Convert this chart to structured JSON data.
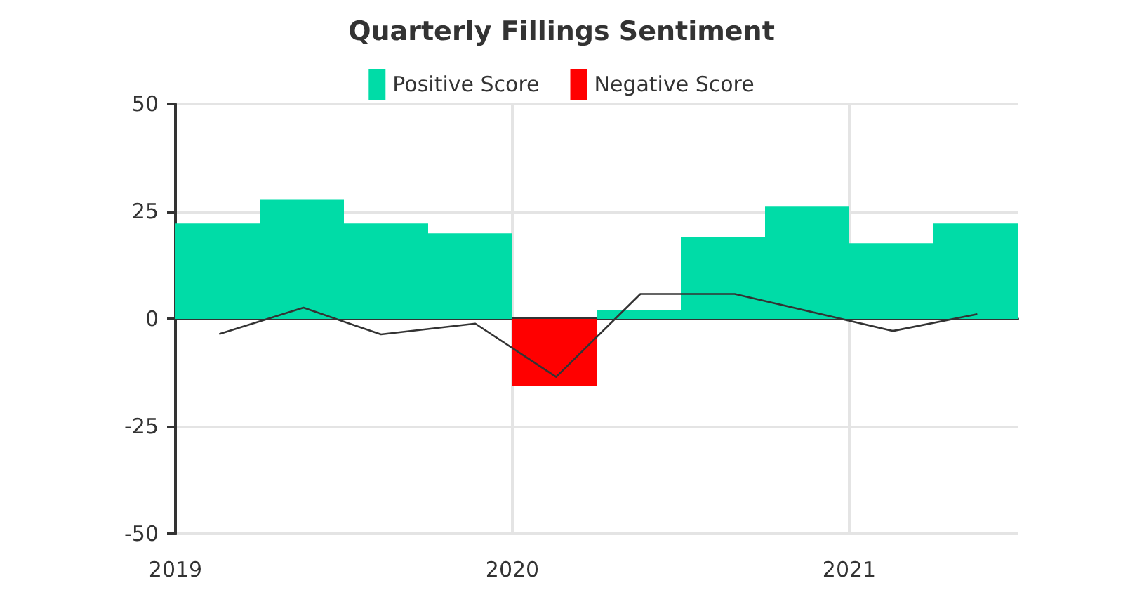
{
  "chart_data": {
    "type": "bar",
    "title": "Quarterly Fillings Sentiment",
    "x": [
      2019.125,
      2019.375,
      2019.625,
      2019.875,
      2020.125,
      2020.375,
      2020.625,
      2020.875,
      2021.125,
      2021.375
    ],
    "series": [
      {
        "name": "Positive Score",
        "color": "#00dca7",
        "values": [
          22.2,
          27.7,
          22.2,
          19.9,
          null,
          2.1,
          19.1,
          26.1,
          17.6,
          22.2
        ]
      },
      {
        "name": "Negative Score",
        "color": "#ff0000",
        "values": [
          null,
          null,
          null,
          null,
          -15.7,
          null,
          null,
          null,
          null,
          null
        ]
      },
      {
        "type": "line",
        "color": "#333333",
        "x": [
          2019.13,
          2019.38,
          2019.61,
          2019.89,
          2020.13,
          2020.38,
          2020.66,
          2021.13,
          2021.38
        ],
        "values": [
          -3.5,
          2.6,
          -3.6,
          -1.1,
          -13.5,
          5.8,
          5.8,
          -2.8,
          1.1
        ]
      }
    ],
    "xlim": [
      2019,
      2021.5
    ],
    "xticks": [
      2019,
      2020,
      2021
    ],
    "ylim": [
      -50,
      50
    ],
    "yticks": [
      -50,
      -25,
      0,
      25,
      50
    ],
    "grid": true,
    "legend": "top",
    "marker": "none"
  }
}
